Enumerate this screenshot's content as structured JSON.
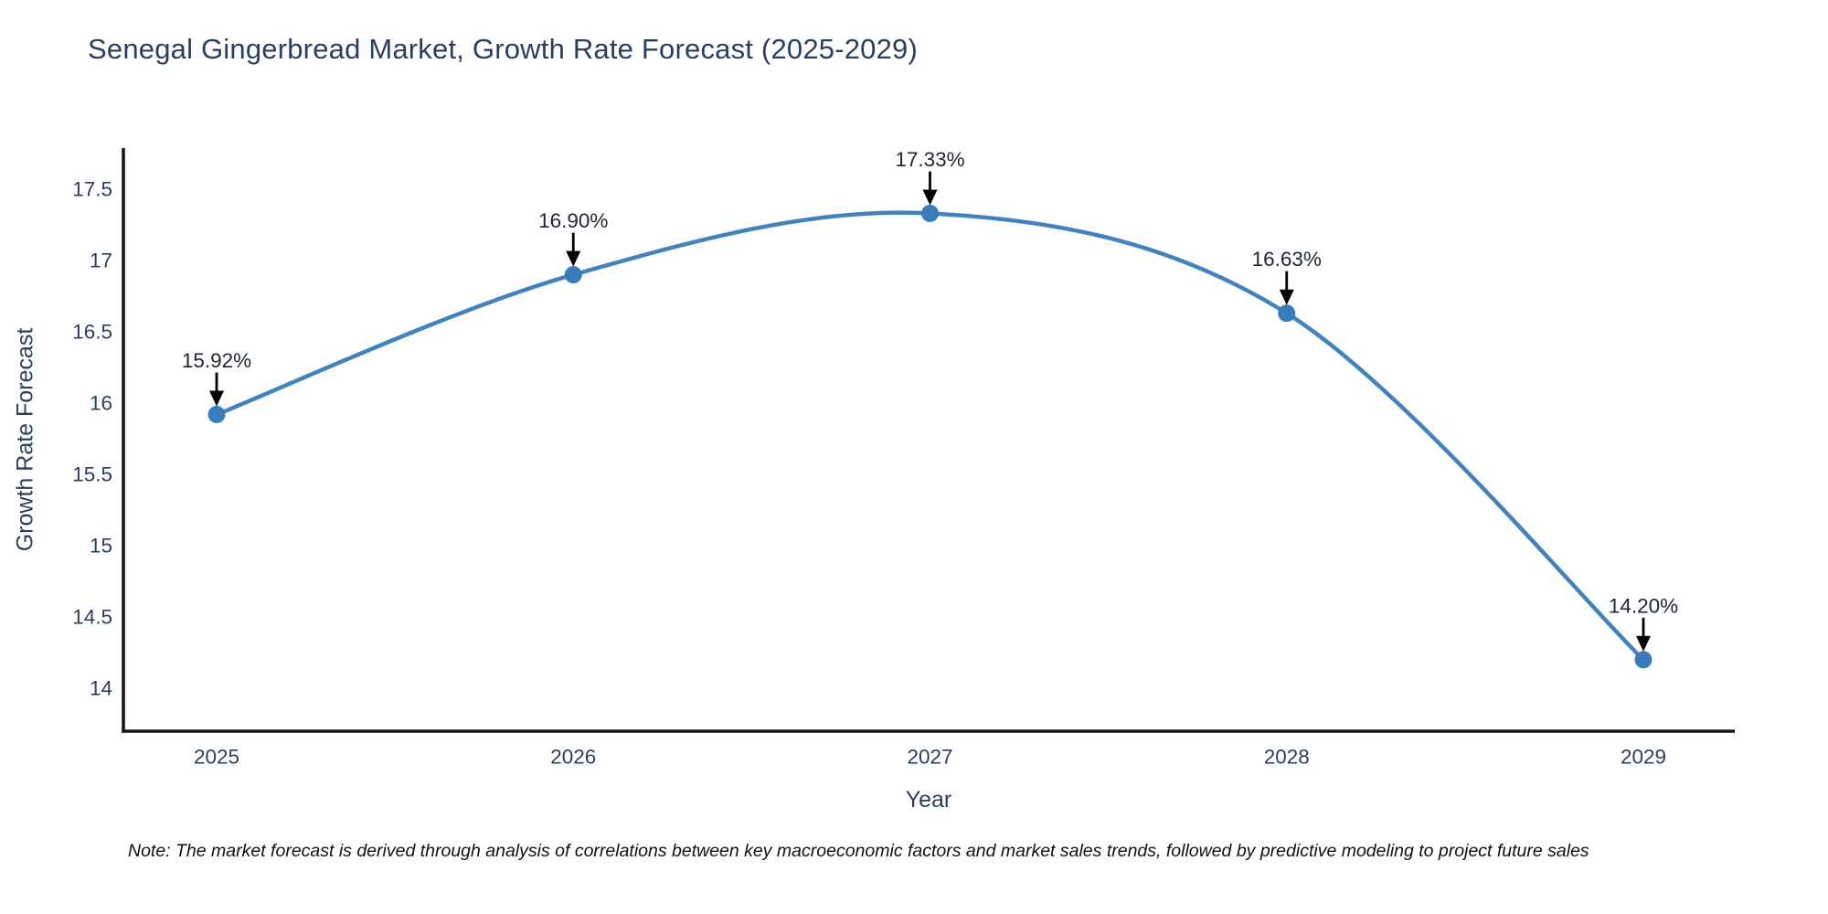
{
  "title": "Senegal Gingerbread Market, Growth Rate Forecast (2025-2029)",
  "note": "Note: The market forecast is derived through analysis of correlations between key macroeconomic factors and market sales trends, followed by predictive modeling to project future sales",
  "chart_data": {
    "type": "line",
    "line_shape": "spline",
    "title": "Senegal Gingerbread Market, Growth Rate Forecast (2025-2029)",
    "xlabel": "Year",
    "ylabel": "Growth Rate Forecast",
    "x": [
      "2025",
      "2026",
      "2027",
      "2028",
      "2029"
    ],
    "values": [
      15.92,
      16.9,
      17.33,
      16.63,
      14.2
    ],
    "point_labels": [
      "15.92%",
      "16.90%",
      "17.33%",
      "16.63%",
      "14.20%"
    ],
    "ytick_values": [
      14,
      14.5,
      15,
      15.5,
      16,
      16.5,
      17,
      17.5
    ],
    "ytick_labels": [
      "14",
      "14.5",
      "15",
      "15.5",
      "16",
      "16.5",
      "17",
      "17.5"
    ],
    "ylim": [
      13.7,
      17.79
    ],
    "grid": false,
    "legend": "none",
    "colors": {
      "line": "#4282bd",
      "marker": "#3a7cba",
      "axis": "#141414",
      "tick_text": "#2a3f5f",
      "annotation_text": "#1e2633",
      "arrow": "#000000"
    }
  }
}
